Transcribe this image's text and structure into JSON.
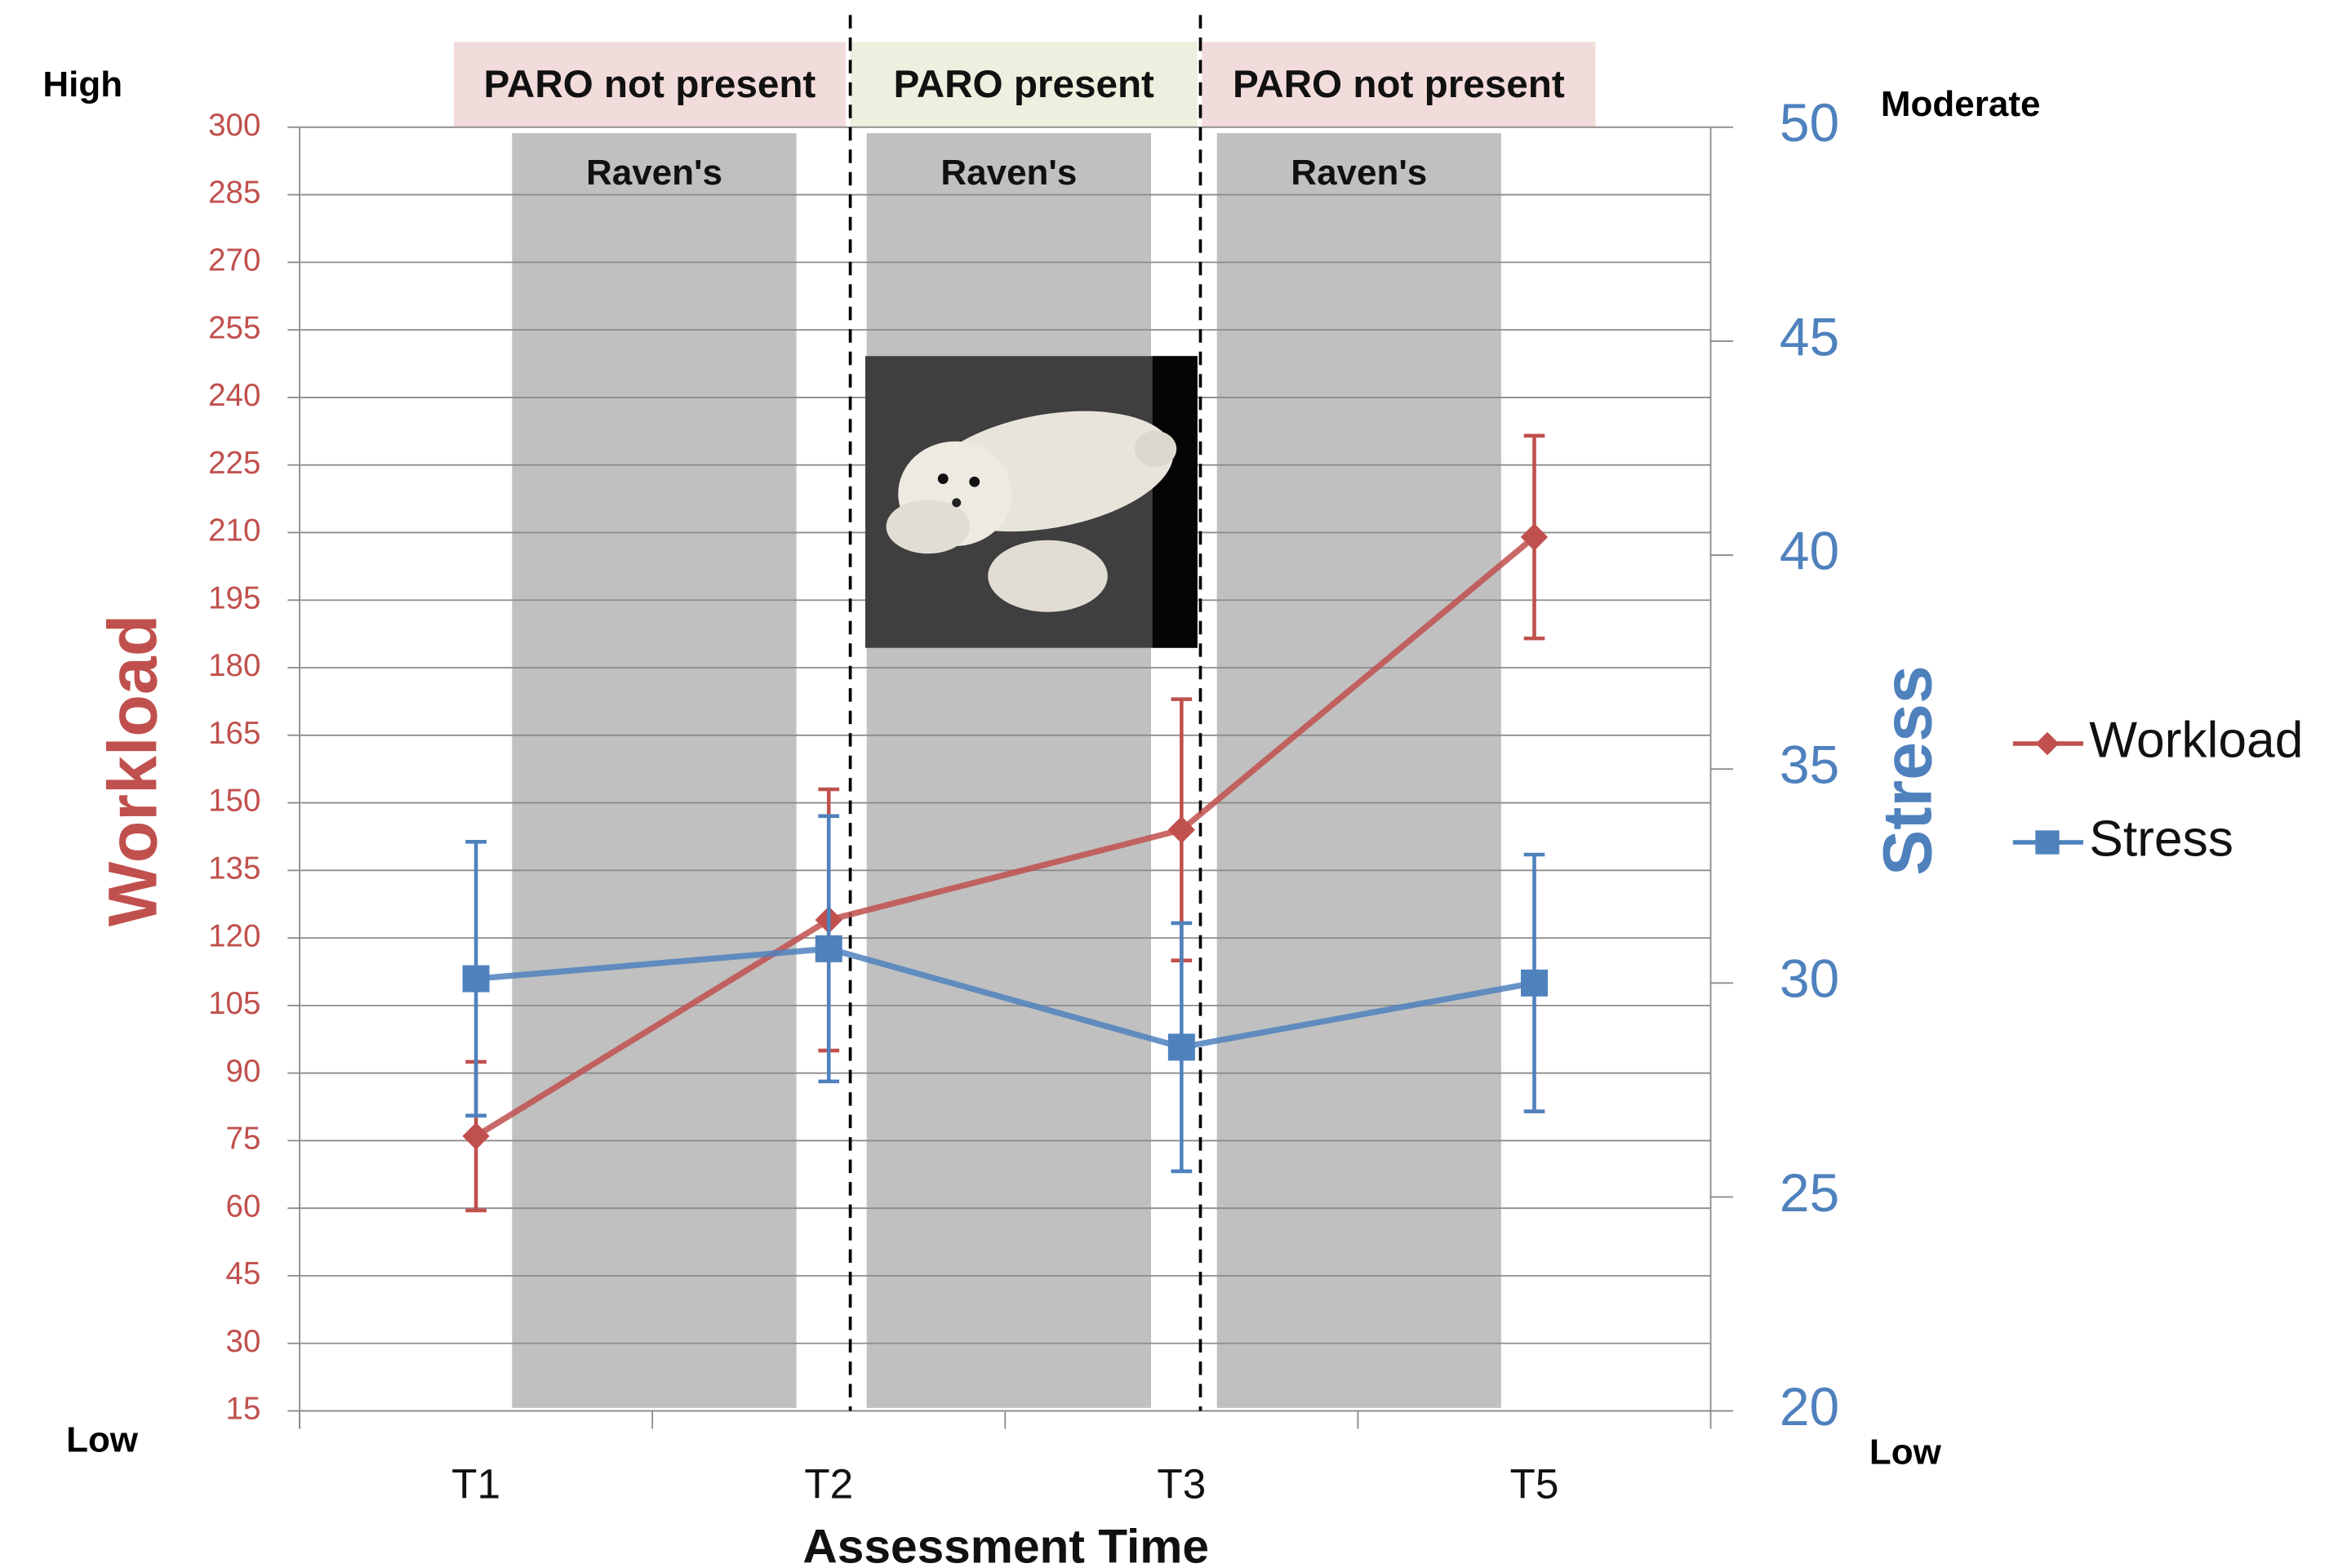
{
  "chart_data": {
    "type": "line",
    "categories": [
      "T1",
      "T2",
      "T3",
      "T5"
    ],
    "x_label": "Assessment Time",
    "y_label": "Workload",
    "y2_label": "Stress",
    "ylim": [
      15,
      300
    ],
    "yticks": [
      15,
      30,
      45,
      60,
      75,
      90,
      105,
      120,
      135,
      150,
      165,
      180,
      195,
      210,
      225,
      240,
      255,
      270,
      285,
      300
    ],
    "y2lim": [
      20,
      50
    ],
    "y2ticks": [
      20,
      25,
      30,
      35,
      40,
      45,
      50
    ],
    "y_high_label": "High",
    "y_low_label": "Low",
    "y2_high_label": "Moderate",
    "y2_low_label": "Low",
    "regions": [
      {
        "label": "PARO not present",
        "task": "Raven's",
        "color": "#f2dcdb"
      },
      {
        "label": "PARO present",
        "task": "Raven's",
        "color": "#ebf1de"
      },
      {
        "label": "PARO not present",
        "task": "Raven's",
        "color": "#f2dcdb"
      }
    ],
    "grid": true,
    "series": [
      {
        "name": "Workload",
        "color": "#c0504d",
        "marker": "diamond",
        "values": [
          76,
          124,
          144,
          209
        ],
        "errors": [
          16.5,
          29,
          29,
          22.5
        ]
      },
      {
        "name": "Stress",
        "color": "#4f81bd",
        "marker": "square",
        "axis": "y2",
        "values": [
          30.1,
          30.8,
          28.5,
          30.0
        ],
        "errors": [
          3.2,
          3.1,
          2.9,
          3.0
        ]
      }
    ]
  }
}
